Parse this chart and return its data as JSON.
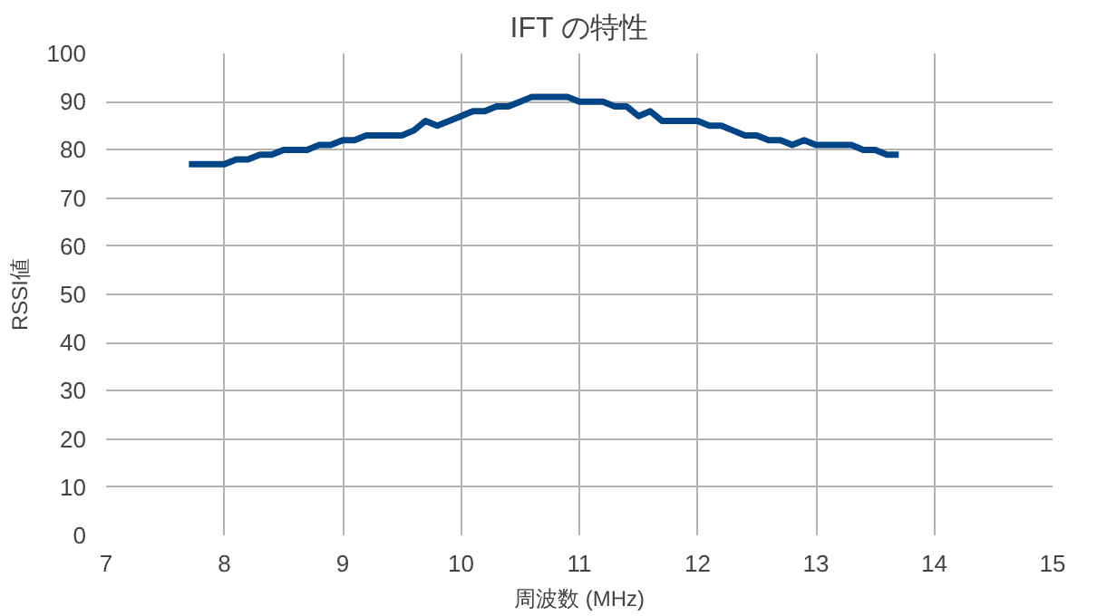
{
  "chart_data": {
    "type": "line",
    "title": "IFT の特性",
    "xlabel": "周波数 (MHz)",
    "ylabel": "RSSI値",
    "xlim": [
      7,
      15
    ],
    "xticks": [
      7,
      8,
      9,
      10,
      11,
      12,
      13,
      14,
      15
    ],
    "ylim": [
      0,
      100
    ],
    "yticks": [
      0,
      10,
      20,
      30,
      40,
      50,
      60,
      70,
      80,
      90,
      100
    ],
    "grid": true,
    "marker": "none",
    "line_style": "solid",
    "series": [
      {
        "color": "#004586",
        "x": [
          7.7,
          7.8,
          7.9,
          8.0,
          8.1,
          8.2,
          8.3,
          8.4,
          8.5,
          8.6,
          8.7,
          8.8,
          8.9,
          9.0,
          9.1,
          9.2,
          9.3,
          9.4,
          9.5,
          9.6,
          9.7,
          9.8,
          9.9,
          10.0,
          10.1,
          10.2,
          10.3,
          10.4,
          10.5,
          10.6,
          10.7,
          10.8,
          10.9,
          11.0,
          11.1,
          11.2,
          11.3,
          11.4,
          11.5,
          11.6,
          11.7,
          11.8,
          11.9,
          12.0,
          12.1,
          12.2,
          12.3,
          12.4,
          12.5,
          12.6,
          12.7,
          12.8,
          12.9,
          13.0,
          13.1,
          13.2,
          13.3,
          13.4,
          13.5,
          13.6,
          13.7
        ],
        "values": [
          77,
          77,
          77,
          77,
          78,
          78,
          79,
          79,
          80,
          80,
          80,
          81,
          81,
          82,
          82,
          83,
          83,
          83,
          83,
          84,
          86,
          85,
          86,
          87,
          88,
          88,
          89,
          89,
          90,
          91,
          91,
          91,
          91,
          90,
          90,
          90,
          89,
          89,
          87,
          88,
          86,
          86,
          86,
          86,
          85,
          85,
          84,
          83,
          83,
          82,
          82,
          81,
          82,
          81,
          81,
          81,
          81,
          80,
          80,
          79,
          79
        ]
      }
    ]
  }
}
